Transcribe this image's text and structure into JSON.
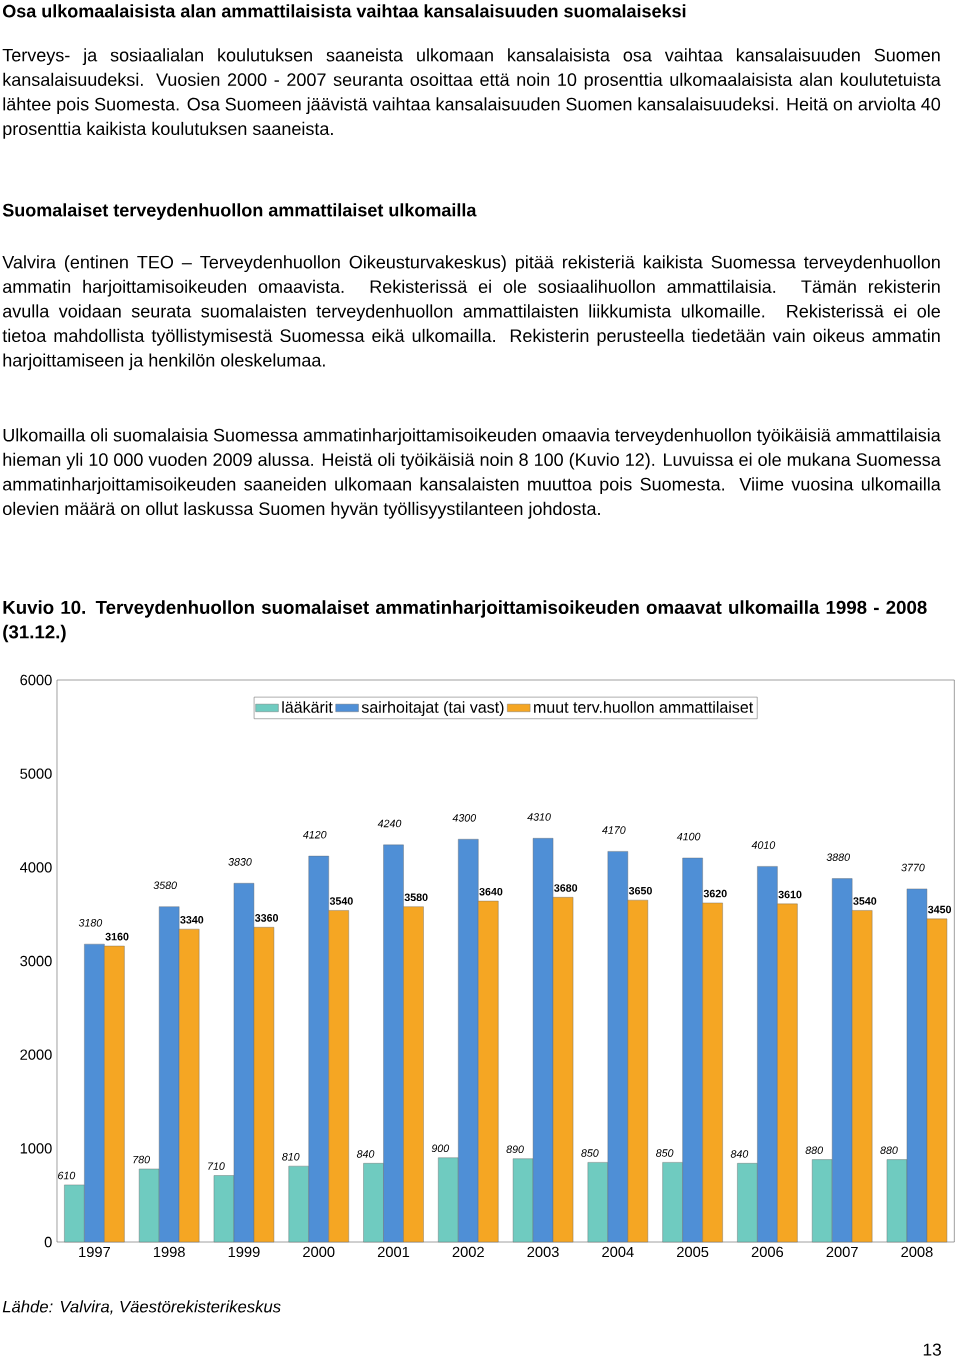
{
  "chart_data": {
    "type": "bar",
    "title": "Kuvio 10. Terveydenhuollon suomalaiset ammatinharjoittamisoikeuden omaavat ulkomailla 1998 - 2008 (31.12.)",
    "annotations": [
      "Osa ulkomaalaisista alan ammattilaisista vaihtaa kansalaisuuden suomalaiseksi",
      "Terveys- ja sosiaalialan koulutuksen saaneista ulkomaan kansalaisista osa vaihtaa kansalaisuuden Suomen kansalaisuudeksi. Vuosien 2000 - 2007 seuranta osoittaa että noin 10 prosenttia ulkomaalaisista alan koulutetuista lähtee pois Suomesta. Osa Suomeen jäävistä vaihtaa kansalaisuuden Suomen kansalaisuudeksi. Heitä on arviolta 40 prosenttia kaikista koulutuksen saaneista.",
      "Suomalaiset terveydenhuollon ammattilaiset ulkomailla",
      "Valvira (entinen TEO – Terveydenhuollon Oikeusturvakeskus) pitää rekisteriä kaikista Suomessa terveydenhuollon ammatin harjoittamisoikeuden omaavista. Rekisterissä ei ole sosiaalihuollon ammattilaisia. Tämän rekisterin avulla voidaan seurata suomalaisten terveydenhuollon ammattilaisten liikkumista ulkomaille. Rekisterissä ei ole tietoa mahdollista työllistymisestä Suomessa eikä ulkomailla. Rekisterin perusteella tiedetään vain oikeus ammatin harjoittamiseen ja henkilön oleskelumaa.",
      "Ulkomailla oli suomalaisia Suomessa ammatinharjoittamisoikeuden omaavia terveydenhuollon työikäisiä ammattilaisia hieman yli 10 000 vuoden 2009 alussa. Heistä oli työikäisiä noin 8 100 (Kuvio 12). Luvuissa ei ole mukana Suomessa ammatinharjoittamisoikeuden saaneiden ulkomaan kansalaisten muuttoa pois Suomesta. Viime vuosina ulkomailla olevien määrä on ollut laskussa Suomen hyvän työllisyystilanteen johdosta.",
      "Lähde: Valvira, Väestörekisterikeskus",
      "13"
    ],
    "categories": [
      "1997",
      "1998",
      "1999",
      "2000",
      "2001",
      "2002",
      "2003",
      "2004",
      "2005",
      "2006",
      "2007",
      "2008"
    ],
    "series": [
      {
        "name": "lääkärit",
        "color": "#6fcbc0",
        "values": [
          610,
          780,
          710,
          810,
          840,
          900,
          890,
          850,
          850,
          840,
          880,
          880
        ]
      },
      {
        "name": "sairhoitajat (tai vast)",
        "color": "#4f8fd6",
        "values": [
          3180,
          3580,
          3830,
          4120,
          4240,
          4300,
          4310,
          4170,
          4100,
          4010,
          3880,
          3770
        ]
      },
      {
        "name": "muut terv.huollon ammattilaiset",
        "color": "#f5a623",
        "values": [
          3160,
          3340,
          3360,
          3540,
          3580,
          3640,
          3680,
          3650,
          3620,
          3610,
          3540,
          3450
        ]
      }
    ],
    "ylim": [
      0,
      6000
    ],
    "yticks": [
      0,
      1000,
      2000,
      3000,
      4000,
      5000,
      6000
    ],
    "legend": "top",
    "data_labels": true
  }
}
